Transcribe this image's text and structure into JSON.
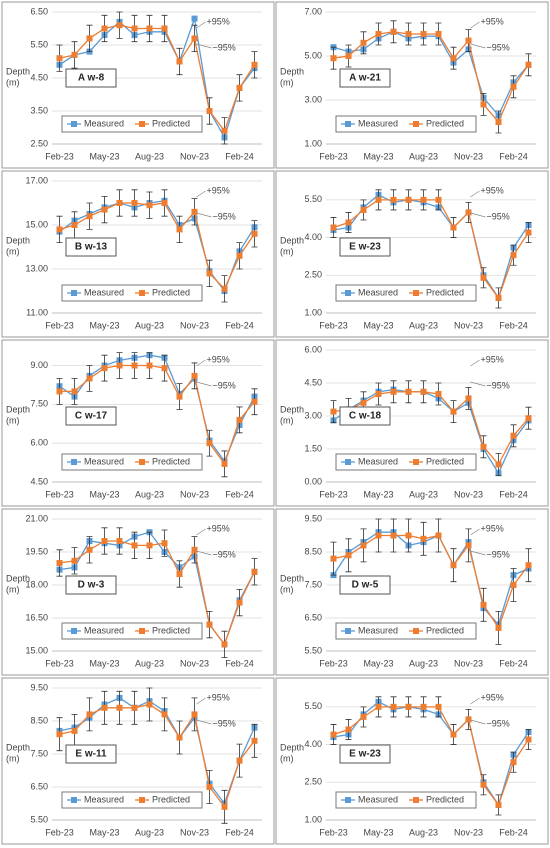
{
  "chart_data": [
    {
      "type": "line",
      "title": "A w-8",
      "y_label": [
        "Depth",
        "(m)"
      ],
      "annotations": [
        "+95%",
        "−95%"
      ],
      "categories": [
        "Feb-23",
        null,
        null,
        "May-23",
        null,
        null,
        "Aug-23",
        null,
        null,
        "Nov-23",
        null,
        null,
        "Feb-24",
        null
      ],
      "ylim": [
        2.5,
        6.5
      ],
      "yticks": [
        {
          "value": 2.5,
          "label": "2.50"
        },
        {
          "value": 3.5,
          "label": "3.50"
        },
        {
          "value": 4.5,
          "label": "4.50"
        },
        {
          "value": 5.5,
          "label": "5.50"
        },
        {
          "value": 6.5,
          "label": "6.50"
        }
      ],
      "grid": true,
      "series": [
        {
          "name": "Measured",
          "color": "#5b9bd5",
          "values": [
            4.9,
            5.2,
            5.3,
            5.8,
            6.2,
            5.8,
            5.9,
            5.9,
            5.0,
            6.3,
            3.5,
            2.7,
            4.2,
            4.8
          ]
        },
        {
          "name": "Predicted",
          "color": "#ed7d31",
          "error": 0.4,
          "values": [
            5.1,
            5.2,
            5.7,
            6.0,
            6.1,
            6.0,
            6.0,
            6.0,
            5.0,
            5.7,
            3.5,
            2.9,
            4.2,
            4.9
          ]
        }
      ]
    },
    {
      "type": "line",
      "title": "A w-21",
      "y_label": [
        "Depth",
        "(m)"
      ],
      "annotations": [
        "+95%",
        "−95%"
      ],
      "categories": [
        "Feb-23",
        null,
        null,
        "May-23",
        null,
        null,
        "Aug-23",
        null,
        null,
        "Nov-23",
        null,
        null,
        "Feb-24",
        null
      ],
      "ylim": [
        1,
        7
      ],
      "yticks": [
        {
          "value": 1,
          "label": "1.00"
        },
        {
          "value": 3,
          "label": "3.00"
        },
        {
          "value": 5,
          "label": "5.00"
        },
        {
          "value": 7,
          "label": "7.00"
        }
      ],
      "grid": true,
      "series": [
        {
          "name": "Measured",
          "color": "#5b9bd5",
          "values": [
            5.4,
            5.2,
            5.3,
            5.8,
            6.1,
            5.8,
            5.9,
            5.9,
            4.7,
            5.3,
            3.1,
            2.3,
            3.8,
            4.6
          ]
        },
        {
          "name": "Predicted",
          "color": "#ed7d31",
          "error": 0.5,
          "values": [
            4.9,
            5.0,
            5.6,
            6.0,
            6.1,
            6.0,
            6.0,
            6.0,
            4.9,
            5.7,
            2.8,
            2.0,
            3.6,
            4.6
          ]
        }
      ]
    },
    {
      "type": "line",
      "title": "B w-13",
      "y_label": [
        "Depth",
        "(m)"
      ],
      "annotations": [
        "+95%",
        "−95%"
      ],
      "categories": [
        "Feb-23",
        null,
        null,
        "May-23",
        null,
        null,
        "Aug-23",
        null,
        null,
        "Nov-23",
        null,
        null,
        "Feb-24",
        null
      ],
      "ylim": [
        11,
        17
      ],
      "yticks": [
        {
          "value": 11,
          "label": "11.00"
        },
        {
          "value": 13,
          "label": "13.00"
        },
        {
          "value": 15,
          "label": "15.00"
        },
        {
          "value": 17,
          "label": "17.00"
        }
      ],
      "grid": true,
      "series": [
        {
          "name": "Measured",
          "color": "#5b9bd5",
          "values": [
            14.7,
            15.2,
            15.5,
            15.8,
            16.0,
            15.8,
            16.0,
            16.1,
            15.0,
            15.3,
            12.9,
            12.0,
            13.8,
            14.9
          ]
        },
        {
          "name": "Predicted",
          "color": "#ed7d31",
          "error": 0.6,
          "values": [
            14.8,
            15.0,
            15.4,
            15.7,
            16.0,
            16.0,
            15.9,
            16.0,
            14.8,
            15.6,
            12.8,
            12.1,
            13.6,
            14.6
          ]
        }
      ]
    },
    {
      "type": "line",
      "title": "E w-23",
      "y_label": [
        "Depth",
        "(m)"
      ],
      "annotations": [
        "+95%",
        "−95%"
      ],
      "categories": [
        "Feb-23",
        null,
        null,
        "May-23",
        null,
        null,
        "Aug-23",
        null,
        null,
        "Nov-23",
        null,
        null,
        "Feb-24",
        null
      ],
      "ylim": [
        1,
        6.25
      ],
      "yticks": [
        {
          "value": 1,
          "label": "1.00"
        },
        {
          "value": 2.5,
          "label": "2.50"
        },
        {
          "value": 4,
          "label": "4.00"
        },
        {
          "value": 5.5,
          "label": "5.50"
        }
      ],
      "grid": true,
      "series": [
        {
          "name": "Measured",
          "color": "#5b9bd5",
          "values": [
            4.3,
            4.4,
            5.2,
            5.7,
            5.4,
            5.5,
            5.4,
            5.2,
            4.4,
            5.0,
            2.5,
            1.6,
            3.6,
            4.5
          ]
        },
        {
          "name": "Predicted",
          "color": "#ed7d31",
          "error": 0.4,
          "values": [
            4.4,
            4.6,
            5.1,
            5.5,
            5.5,
            5.5,
            5.5,
            5.5,
            4.4,
            5.0,
            2.4,
            1.6,
            3.3,
            4.2
          ]
        }
      ]
    },
    {
      "type": "line",
      "title": "C w-17",
      "y_label": [
        "Depth",
        "(m)"
      ],
      "annotations": [
        "+95%",
        "−95%"
      ],
      "categories": [
        "Feb-23",
        null,
        null,
        "May-23",
        null,
        null,
        "Aug-23",
        null,
        null,
        "Nov-23",
        null,
        null,
        "Feb-24",
        null
      ],
      "ylim": [
        4.5,
        9.6
      ],
      "yticks": [
        {
          "value": 4.5,
          "label": "4.50"
        },
        {
          "value": 6,
          "label": "6.00"
        },
        {
          "value": 7.5,
          "label": "7.50"
        },
        {
          "value": 9,
          "label": "9.00"
        }
      ],
      "grid": true,
      "series": [
        {
          "name": "Measured",
          "color": "#5b9bd5",
          "values": [
            8.2,
            7.8,
            8.6,
            9.0,
            9.2,
            9.3,
            9.4,
            9.3,
            7.9,
            8.5,
            6.1,
            5.3,
            6.7,
            7.8
          ]
        },
        {
          "name": "Predicted",
          "color": "#ed7d31",
          "error": 0.5,
          "values": [
            8.0,
            8.0,
            8.5,
            8.9,
            9.0,
            9.0,
            9.0,
            8.9,
            7.8,
            8.6,
            6.0,
            5.2,
            6.9,
            7.6
          ]
        }
      ]
    },
    {
      "type": "line",
      "title": "C w-18",
      "y_label": [
        "Depth",
        "(m)"
      ],
      "annotations": [
        "+95%",
        "−95%"
      ],
      "categories": [
        "Feb-23",
        null,
        null,
        "May-23",
        null,
        null,
        "Aug-23",
        null,
        null,
        "Nov-23",
        null,
        null,
        "Feb-24",
        null
      ],
      "ylim": [
        0,
        6
      ],
      "yticks": [
        {
          "value": 0,
          "label": "0.00"
        },
        {
          "value": 1.5,
          "label": "1.50"
        },
        {
          "value": 3,
          "label": "3.00"
        },
        {
          "value": 4.5,
          "label": "4.50"
        },
        {
          "value": 6,
          "label": "6.00"
        }
      ],
      "grid": true,
      "series": [
        {
          "name": "Measured",
          "color": "#5b9bd5",
          "values": [
            2.8,
            3.3,
            3.7,
            4.1,
            4.2,
            4.1,
            4.1,
            3.8,
            3.2,
            3.6,
            1.5,
            0.4,
            1.9,
            2.8
          ]
        },
        {
          "name": "Predicted",
          "color": "#ed7d31",
          "error": 0.5,
          "values": [
            3.2,
            3.3,
            3.6,
            4.0,
            4.1,
            4.1,
            4.1,
            4.0,
            3.2,
            3.8,
            1.6,
            0.8,
            2.1,
            2.9
          ]
        }
      ]
    },
    {
      "type": "line",
      "title": "D w-3",
      "y_label": [
        "Depth",
        "(m)"
      ],
      "annotations": [
        "+95%",
        "−95%"
      ],
      "categories": [
        "Feb-23",
        null,
        null,
        "May-23",
        null,
        null,
        "Aug-23",
        null,
        null,
        "Nov-23",
        null,
        null,
        "Feb-24",
        null
      ],
      "ylim": [
        15,
        21
      ],
      "yticks": [
        {
          "value": 15,
          "label": "15.00"
        },
        {
          "value": 16.5,
          "label": "16.50"
        },
        {
          "value": 18,
          "label": "18.00"
        },
        {
          "value": 19.5,
          "label": "19.50"
        },
        {
          "value": 21,
          "label": "21.00"
        }
      ],
      "grid": true,
      "series": [
        {
          "name": "Measured",
          "color": "#5b9bd5",
          "values": [
            18.7,
            18.8,
            20.0,
            19.9,
            19.8,
            20.2,
            20.4,
            19.5,
            18.8,
            19.3,
            16.2,
            15.3,
            17.3,
            18.6
          ]
        },
        {
          "name": "Predicted",
          "color": "#ed7d31",
          "error": 0.6,
          "values": [
            19.0,
            19.1,
            19.6,
            20.0,
            20.0,
            19.8,
            19.8,
            19.9,
            18.5,
            19.6,
            16.2,
            15.3,
            17.2,
            18.6
          ]
        }
      ]
    },
    {
      "type": "line",
      "title": "D w-5",
      "y_label": [
        "Depth",
        "(m)"
      ],
      "annotations": [
        "+95%",
        "−95%"
      ],
      "categories": [
        "Feb-23",
        null,
        null,
        "May-23",
        null,
        null,
        "Aug-23",
        null,
        null,
        "Nov-23",
        null,
        null,
        "Feb-24",
        null
      ],
      "ylim": [
        5.5,
        9.5
      ],
      "yticks": [
        {
          "value": 5.5,
          "label": "5.50"
        },
        {
          "value": 6.5,
          "label": "6.50"
        },
        {
          "value": 7.5,
          "label": "7.50"
        },
        {
          "value": 8.5,
          "label": "8.50"
        },
        {
          "value": 9.5,
          "label": "9.50"
        }
      ],
      "grid": true,
      "series": [
        {
          "name": "Measured",
          "color": "#5b9bd5",
          "values": [
            7.8,
            8.5,
            8.8,
            9.1,
            9.1,
            8.7,
            8.8,
            9.0,
            8.1,
            8.8,
            6.8,
            6.3,
            7.8,
            8.0
          ]
        },
        {
          "name": "Predicted",
          "color": "#ed7d31",
          "error": 0.5,
          "values": [
            8.3,
            8.4,
            8.7,
            9.0,
            9.0,
            9.0,
            8.9,
            9.0,
            8.1,
            8.7,
            6.9,
            6.2,
            7.5,
            8.1
          ]
        }
      ]
    },
    {
      "type": "line",
      "title": "E w-11",
      "y_label": [
        "Depth",
        "(m)"
      ],
      "annotations": [
        "+95%",
        "−95%"
      ],
      "categories": [
        "Feb-23",
        null,
        null,
        "May-23",
        null,
        null,
        "Aug-23",
        null,
        null,
        "Nov-23",
        null,
        null,
        "Feb-24",
        null
      ],
      "ylim": [
        5.5,
        9.5
      ],
      "yticks": [
        {
          "value": 5.5,
          "label": "5.50"
        },
        {
          "value": 6.5,
          "label": "6.50"
        },
        {
          "value": 7.5,
          "label": "7.50"
        },
        {
          "value": 8.5,
          "label": "8.50"
        },
        {
          "value": 9.5,
          "label": "9.50"
        }
      ],
      "grid": true,
      "series": [
        {
          "name": "Measured",
          "color": "#5b9bd5",
          "values": [
            8.2,
            8.3,
            8.6,
            9.0,
            9.2,
            8.9,
            9.1,
            8.8,
            8.0,
            8.6,
            6.6,
            6.0,
            7.3,
            8.3
          ]
        },
        {
          "name": "Predicted",
          "color": "#ed7d31",
          "error": 0.5,
          "values": [
            8.1,
            8.2,
            8.7,
            8.9,
            8.9,
            8.9,
            9.0,
            8.7,
            8.0,
            8.7,
            6.5,
            5.9,
            7.3,
            7.9
          ]
        }
      ]
    },
    {
      "type": "line",
      "title": "E w-23",
      "y_label": [
        "Depth",
        "(m)"
      ],
      "annotations": [
        "+95%",
        "−95%"
      ],
      "categories": [
        "Feb-23",
        null,
        null,
        "May-23",
        null,
        null,
        "Aug-23",
        null,
        null,
        "Nov-23",
        null,
        null,
        "Feb-24",
        null
      ],
      "ylim": [
        1,
        6.25
      ],
      "yticks": [
        {
          "value": 1,
          "label": "1.00"
        },
        {
          "value": 2.5,
          "label": "2.50"
        },
        {
          "value": 4,
          "label": "4.00"
        },
        {
          "value": 5.5,
          "label": "5.50"
        }
      ],
      "grid": true,
      "series": [
        {
          "name": "Measured",
          "color": "#5b9bd5",
          "values": [
            4.3,
            4.4,
            5.2,
            5.7,
            5.4,
            5.5,
            5.4,
            5.2,
            4.4,
            5.0,
            2.5,
            1.6,
            3.6,
            4.5
          ]
        },
        {
          "name": "Predicted",
          "color": "#ed7d31",
          "error": 0.4,
          "values": [
            4.4,
            4.6,
            5.1,
            5.5,
            5.5,
            5.5,
            5.5,
            5.5,
            4.4,
            5.0,
            2.4,
            1.6,
            3.3,
            4.2
          ]
        }
      ]
    }
  ]
}
